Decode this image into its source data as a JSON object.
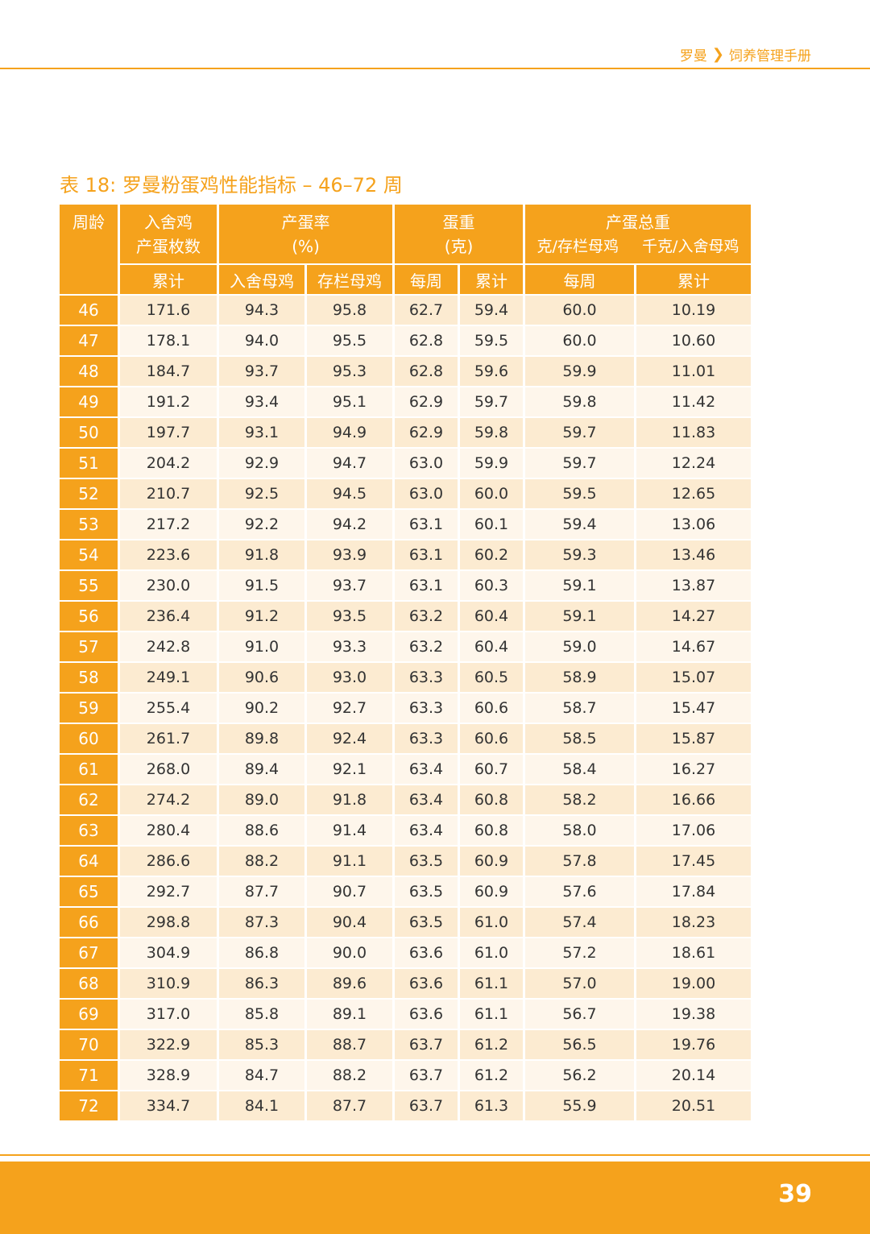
{
  "header": {
    "brand": "罗曼",
    "chevron": "❯",
    "section": "饲养管理手册"
  },
  "title": "表 18: 罗曼粉蛋鸡性能指标 – 46–72 周",
  "table": {
    "headers": {
      "age": "周龄",
      "eggs_hh_line1": "入舍鸡",
      "eggs_hh_line2": "产蛋枚数",
      "rate_line1": "产蛋率",
      "rate_line2": "(%)",
      "weight_line1": "蛋重",
      "weight_line2": "(克)",
      "mass_line1": "产蛋总重",
      "mass_hd": "克/存栏母鸡",
      "mass_hh": "千克/入舍母鸡"
    },
    "subheaders": {
      "cum": "累计",
      "hh": "入舍母鸡",
      "hd": "存栏母鸡",
      "weekly": "每周",
      "weight_cum": "累计",
      "mass_weekly": "每周",
      "mass_cum": "累计"
    },
    "rows": [
      [
        "46",
        "171.6",
        "94.3",
        "95.8",
        "62.7",
        "59.4",
        "60.0",
        "10.19"
      ],
      [
        "47",
        "178.1",
        "94.0",
        "95.5",
        "62.8",
        "59.5",
        "60.0",
        "10.60"
      ],
      [
        "48",
        "184.7",
        "93.7",
        "95.3",
        "62.8",
        "59.6",
        "59.9",
        "11.01"
      ],
      [
        "49",
        "191.2",
        "93.4",
        "95.1",
        "62.9",
        "59.7",
        "59.8",
        "11.42"
      ],
      [
        "50",
        "197.7",
        "93.1",
        "94.9",
        "62.9",
        "59.8",
        "59.7",
        "11.83"
      ],
      [
        "51",
        "204.2",
        "92.9",
        "94.7",
        "63.0",
        "59.9",
        "59.7",
        "12.24"
      ],
      [
        "52",
        "210.7",
        "92.5",
        "94.5",
        "63.0",
        "60.0",
        "59.5",
        "12.65"
      ],
      [
        "53",
        "217.2",
        "92.2",
        "94.2",
        "63.1",
        "60.1",
        "59.4",
        "13.06"
      ],
      [
        "54",
        "223.6",
        "91.8",
        "93.9",
        "63.1",
        "60.2",
        "59.3",
        "13.46"
      ],
      [
        "55",
        "230.0",
        "91.5",
        "93.7",
        "63.1",
        "60.3",
        "59.1",
        "13.87"
      ],
      [
        "56",
        "236.4",
        "91.2",
        "93.5",
        "63.2",
        "60.4",
        "59.1",
        "14.27"
      ],
      [
        "57",
        "242.8",
        "91.0",
        "93.3",
        "63.2",
        "60.4",
        "59.0",
        "14.67"
      ],
      [
        "58",
        "249.1",
        "90.6",
        "93.0",
        "63.3",
        "60.5",
        "58.9",
        "15.07"
      ],
      [
        "59",
        "255.4",
        "90.2",
        "92.7",
        "63.3",
        "60.6",
        "58.7",
        "15.47"
      ],
      [
        "60",
        "261.7",
        "89.8",
        "92.4",
        "63.3",
        "60.6",
        "58.5",
        "15.87"
      ],
      [
        "61",
        "268.0",
        "89.4",
        "92.1",
        "63.4",
        "60.7",
        "58.4",
        "16.27"
      ],
      [
        "62",
        "274.2",
        "89.0",
        "91.8",
        "63.4",
        "60.8",
        "58.2",
        "16.66"
      ],
      [
        "63",
        "280.4",
        "88.6",
        "91.4",
        "63.4",
        "60.8",
        "58.0",
        "17.06"
      ],
      [
        "64",
        "286.6",
        "88.2",
        "91.1",
        "63.5",
        "60.9",
        "57.8",
        "17.45"
      ],
      [
        "65",
        "292.7",
        "87.7",
        "90.7",
        "63.5",
        "60.9",
        "57.6",
        "17.84"
      ],
      [
        "66",
        "298.8",
        "87.3",
        "90.4",
        "63.5",
        "61.0",
        "57.4",
        "18.23"
      ],
      [
        "67",
        "304.9",
        "86.8",
        "90.0",
        "63.6",
        "61.0",
        "57.2",
        "18.61"
      ],
      [
        "68",
        "310.9",
        "86.3",
        "89.6",
        "63.6",
        "61.1",
        "57.0",
        "19.00"
      ],
      [
        "69",
        "317.0",
        "85.8",
        "89.1",
        "63.6",
        "61.1",
        "56.7",
        "19.38"
      ],
      [
        "70",
        "322.9",
        "85.3",
        "88.7",
        "63.7",
        "61.2",
        "56.5",
        "19.76"
      ],
      [
        "71",
        "328.9",
        "84.7",
        "88.2",
        "63.7",
        "61.2",
        "56.2",
        "20.14"
      ],
      [
        "72",
        "334.7",
        "84.1",
        "87.7",
        "63.7",
        "61.3",
        "55.9",
        "20.51"
      ]
    ]
  },
  "page_number": "39",
  "colors": {
    "accent": "#f5a21c",
    "row_odd": "#fcebd1",
    "row_even": "#fef6eb"
  }
}
